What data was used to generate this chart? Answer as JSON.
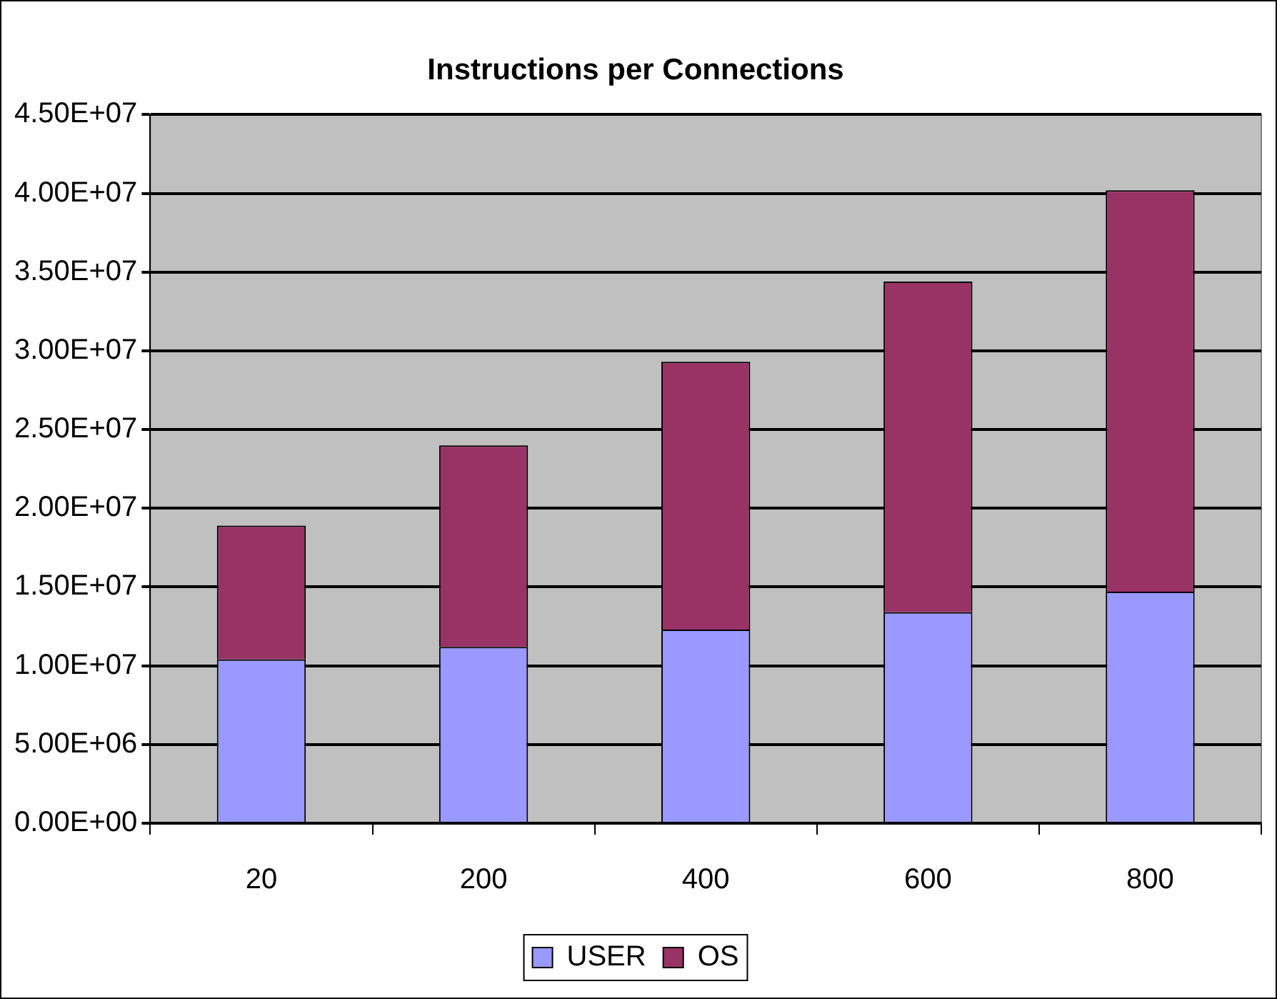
{
  "chart_data": {
    "type": "bar",
    "title": "Instructions per Connections",
    "stacked": true,
    "categories": [
      "20",
      "200",
      "400",
      "600",
      "800"
    ],
    "series": [
      {
        "name": "USER",
        "color": "#9999ff",
        "values": [
          10400000,
          11200000,
          12300000,
          13400000,
          14700000
        ]
      },
      {
        "name": "OS",
        "color": "#993366",
        "values": [
          8500000,
          12800000,
          17000000,
          21000000,
          25500000
        ]
      }
    ],
    "ylim": [
      0,
      45000000
    ],
    "yticks": [
      {
        "value": 0,
        "label": "0.00E+00"
      },
      {
        "value": 5000000,
        "label": "5.00E+06"
      },
      {
        "value": 10000000,
        "label": "1.00E+07"
      },
      {
        "value": 15000000,
        "label": "1.50E+07"
      },
      {
        "value": 20000000,
        "label": "2.00E+07"
      },
      {
        "value": 25000000,
        "label": "2.50E+07"
      },
      {
        "value": 30000000,
        "label": "3.00E+07"
      },
      {
        "value": 35000000,
        "label": "3.50E+07"
      },
      {
        "value": 40000000,
        "label": "4.00E+07"
      },
      {
        "value": 45000000,
        "label": "4.50E+07"
      }
    ],
    "grid": "y",
    "legend": "bottom"
  }
}
